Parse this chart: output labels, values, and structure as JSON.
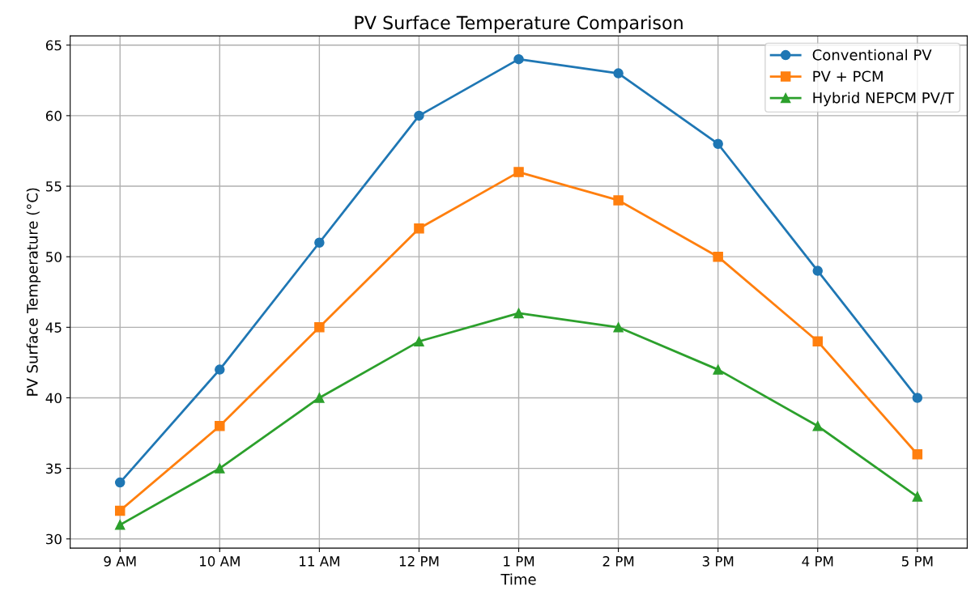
{
  "chart_data": {
    "type": "line",
    "title": "PV Surface Temperature Comparison",
    "xlabel": "Time",
    "ylabel": "PV Surface Temperature (°C)",
    "categories": [
      "9 AM",
      "10 AM",
      "11 AM",
      "12 PM",
      "1 PM",
      "2 PM",
      "3 PM",
      "4 PM",
      "5 PM"
    ],
    "series": [
      {
        "name": "Conventional PV",
        "color": "#1f77b4",
        "marker": "circle",
        "values": [
          34,
          42,
          51,
          60,
          64,
          63,
          58,
          49,
          40
        ]
      },
      {
        "name": "PV + PCM",
        "color": "#ff7f0e",
        "marker": "square",
        "values": [
          32,
          38,
          45,
          52,
          56,
          54,
          50,
          44,
          36
        ]
      },
      {
        "name": "Hybrid NEPCM PV/T",
        "color": "#2ca02c",
        "marker": "triangle",
        "values": [
          31,
          35,
          40,
          44,
          46,
          45,
          42,
          38,
          33
        ]
      }
    ],
    "ylim": [
      29.35,
      65.65
    ],
    "yticks": [
      30,
      35,
      40,
      45,
      50,
      55,
      60,
      65
    ],
    "grid": true,
    "legend": "top right",
    "line_style": "solid"
  }
}
